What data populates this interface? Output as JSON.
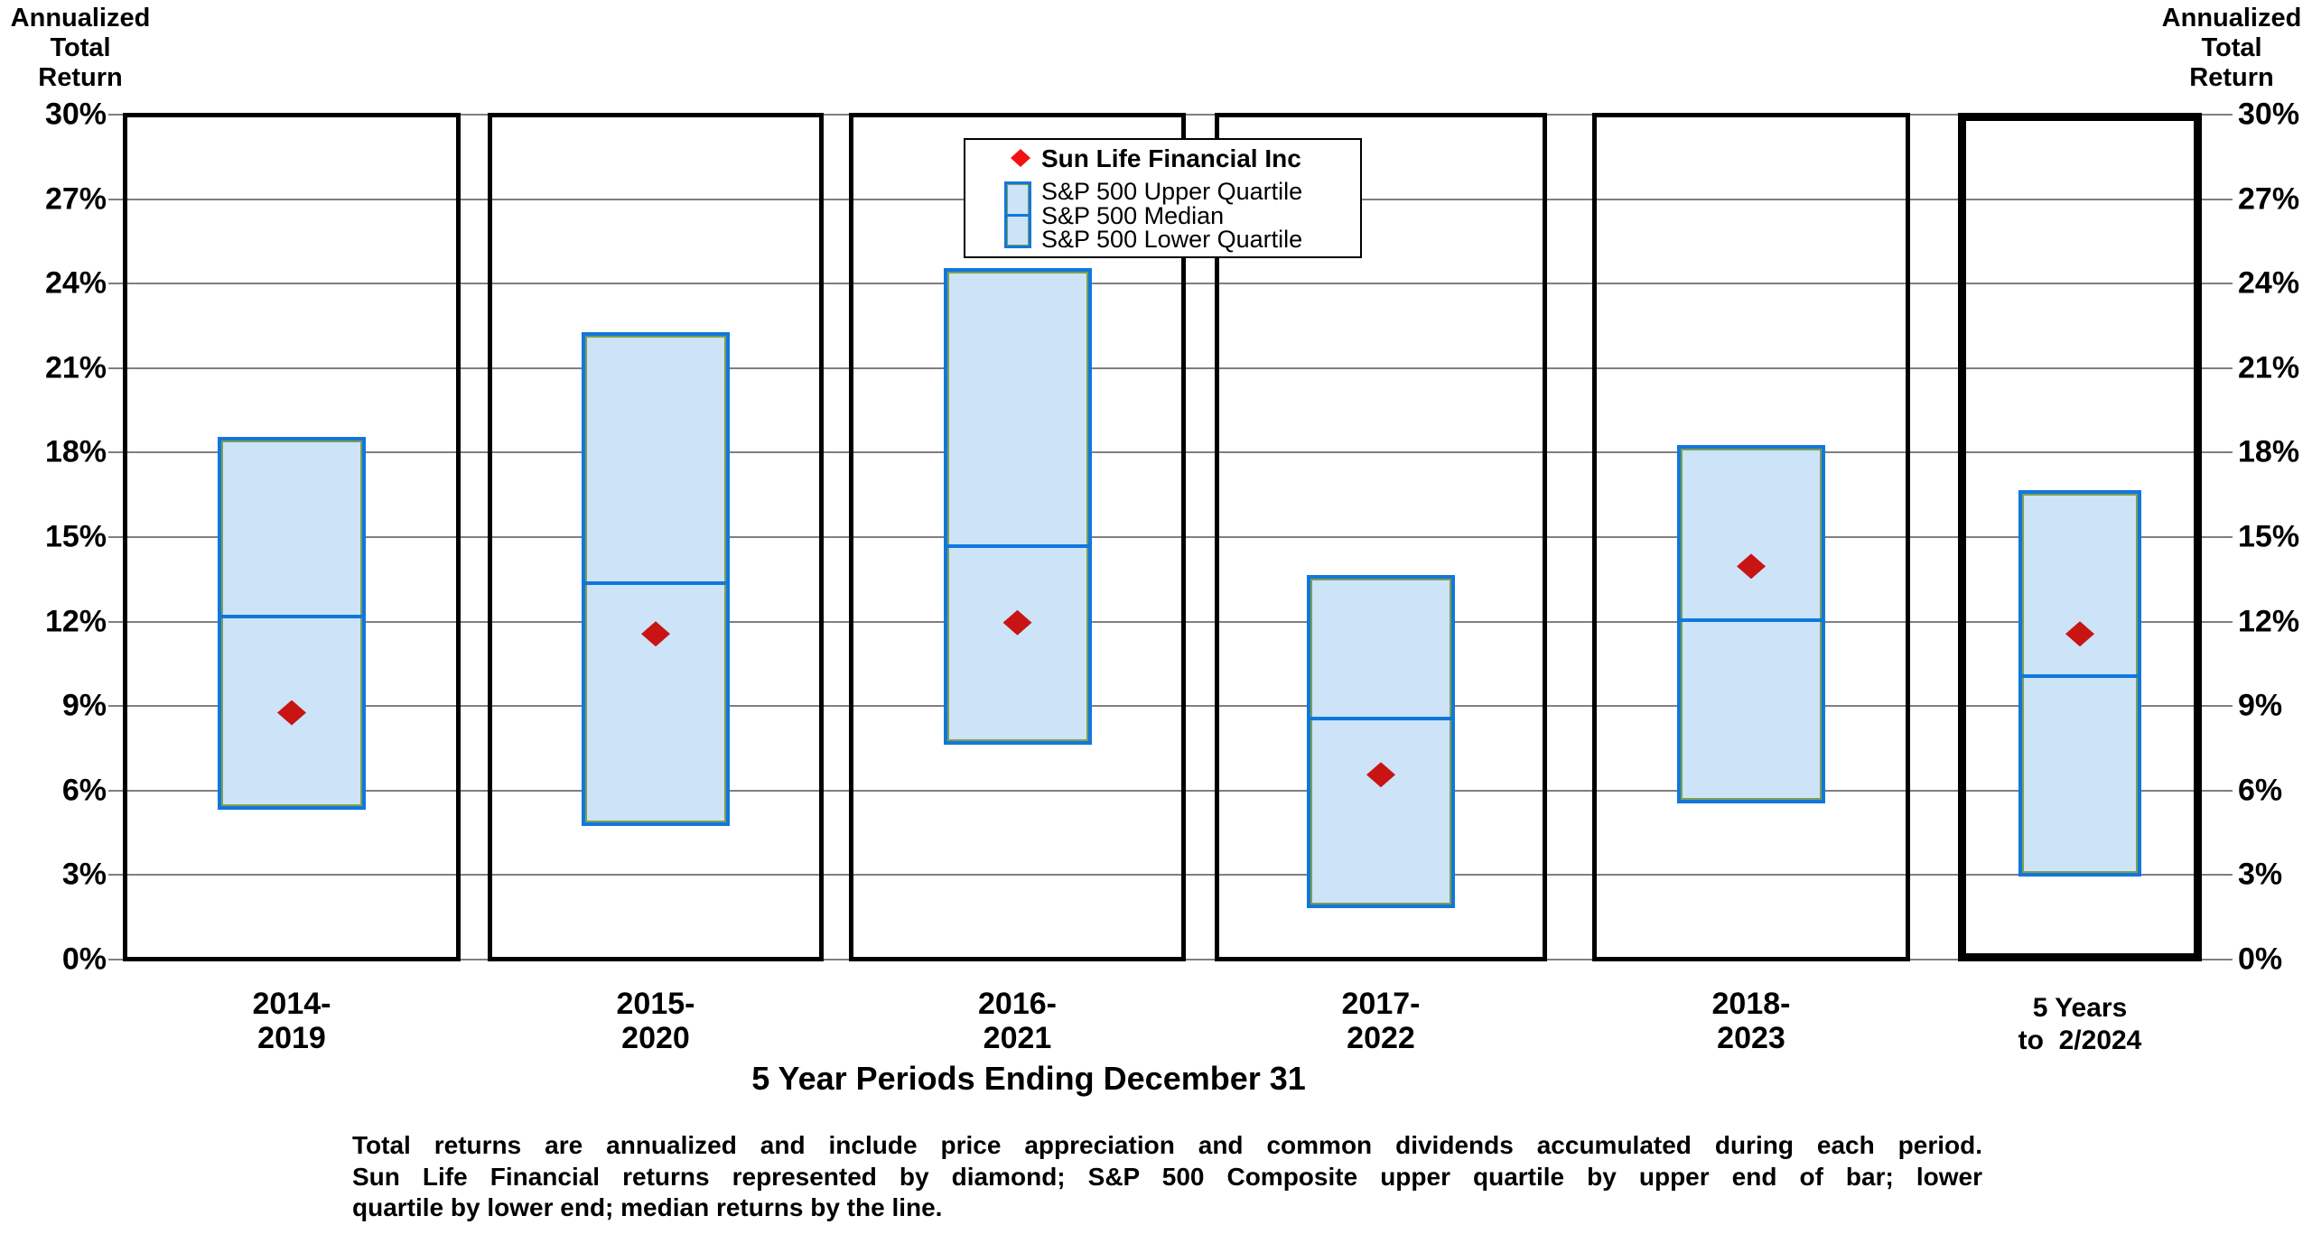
{
  "y_axis_title_left": "Annualized\nTotal\nReturn",
  "y_axis_title_right": "Annualized\nTotal\nReturn",
  "axis": {
    "tick_labels": [
      "30%",
      "27%",
      "24%",
      "21%",
      "18%",
      "15%",
      "12%",
      "9%",
      "6%",
      "3%",
      "0%"
    ],
    "max": 30,
    "min": 0,
    "step": 3
  },
  "legend": {
    "title": "Sun Life Financial Inc",
    "items": [
      "S&P 500 Upper Quartile",
      "S&P 500 Median",
      "S&P 500 Lower Quartile"
    ]
  },
  "x_axis_title": "5 Year Periods Ending December 31",
  "footnote": {
    "lines": [
      "Total returns are annualized and include price appreciation and common dividends accumulated during each period.",
      "Sun Life Financial returns represented by diamond; S&P 500 Composite upper quartile by upper end of bar; lower",
      "quartile by lower end; median returns by the line."
    ]
  },
  "colors": {
    "bar_fill": "#cde3f7",
    "bar_border": "#1177dd",
    "bar_inner": "#7da04f",
    "marker": "#c91414",
    "legend_marker": "#f31111",
    "gridline": "#7f7f7f"
  },
  "chart_data": {
    "type": "bar",
    "subtype": "floating-quartile-range-bars-with-company-markers",
    "title": "",
    "ylabel": "Annualized Total Return",
    "xlabel": "5 Year Periods Ending December 31",
    "ylim": [
      0,
      30
    ],
    "y_tick_step": 3,
    "grid": true,
    "legend_position": "top-center",
    "marker_series": "Sun Life Financial Inc",
    "bar_series": [
      "S&P 500 Upper Quartile",
      "S&P 500 Median",
      "S&P 500 Lower Quartile"
    ],
    "panels": [
      {
        "label": "2014-\n2019",
        "upper": 18.5,
        "median": 12.1,
        "lower": 5.4,
        "company": 8.7,
        "bold_frame": false
      },
      {
        "label": "2015-\n2020",
        "upper": 22.2,
        "median": 13.3,
        "lower": 4.8,
        "company": 11.5,
        "bold_frame": false
      },
      {
        "label": "2016-\n2021",
        "upper": 24.5,
        "median": 14.6,
        "lower": 7.7,
        "company": 11.9,
        "bold_frame": false
      },
      {
        "label": "2017-\n2022",
        "upper": 13.6,
        "median": 8.5,
        "lower": 1.9,
        "company": 6.5,
        "bold_frame": false
      },
      {
        "label": "2018-\n2023",
        "upper": 18.2,
        "median": 12.0,
        "lower": 5.6,
        "company": 13.9,
        "bold_frame": false
      },
      {
        "label": "5 Years\nto  2/2024",
        "upper": 16.6,
        "median": 10.0,
        "lower": 3.0,
        "company": 11.5,
        "bold_frame": true
      }
    ]
  }
}
